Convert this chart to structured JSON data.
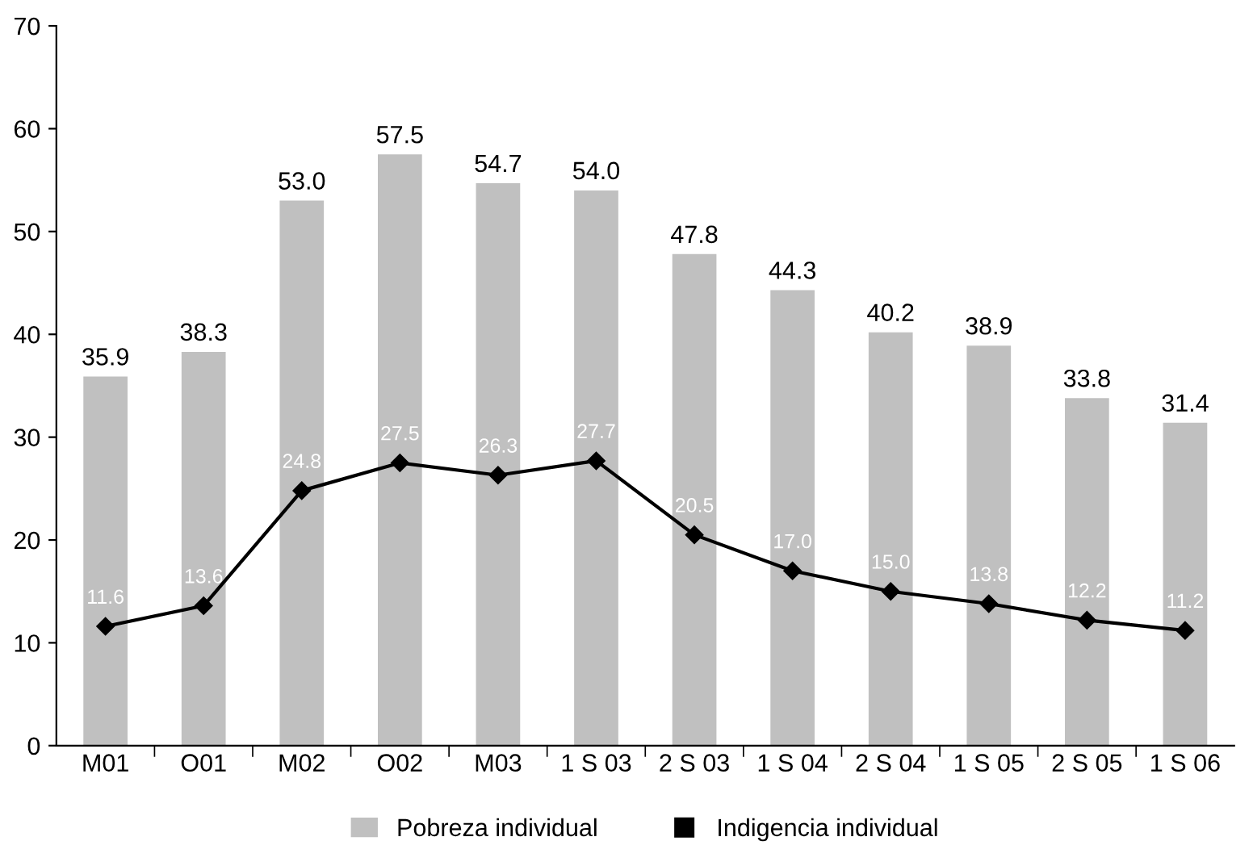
{
  "chart_data": {
    "type": "bar",
    "categories": [
      "M01",
      "O01",
      "M02",
      "O02",
      "M03",
      "1 S 03",
      "2 S 03",
      "1 S 04",
      "2 S 04",
      "1 S 05",
      "2 S 05",
      "1 S 06"
    ],
    "series": [
      {
        "name": "Pobreza individual",
        "color": "#c0c0c0",
        "values": [
          35.9,
          38.3,
          53.0,
          57.5,
          54.7,
          54.0,
          47.8,
          44.3,
          40.2,
          38.9,
          33.8,
          31.4
        ],
        "value_labels": [
          "35.9",
          "38.3",
          "53.0",
          "57.5",
          "54.7",
          "54.0",
          "47.8",
          "44.3",
          "40.2",
          "38.9",
          "33.8",
          "31.4"
        ]
      },
      {
        "name": "Indigencia individual",
        "type": "line",
        "color": "#000000",
        "marker": "diamond",
        "values": [
          11.6,
          13.6,
          24.8,
          27.5,
          26.3,
          27.7,
          20.5,
          17.0,
          15.0,
          13.8,
          12.2,
          11.2
        ],
        "value_labels": [
          "11.6",
          "13.6",
          "24.8",
          "27.5",
          "26.3",
          "27.7",
          "20.5",
          "17.0",
          "15.0",
          "13.8",
          "12.2",
          "11.2"
        ]
      }
    ],
    "ylim": [
      0,
      70
    ],
    "yticks": [
      0,
      10,
      20,
      30,
      40,
      50,
      60,
      70
    ],
    "grid": false,
    "legend": "bottom"
  }
}
